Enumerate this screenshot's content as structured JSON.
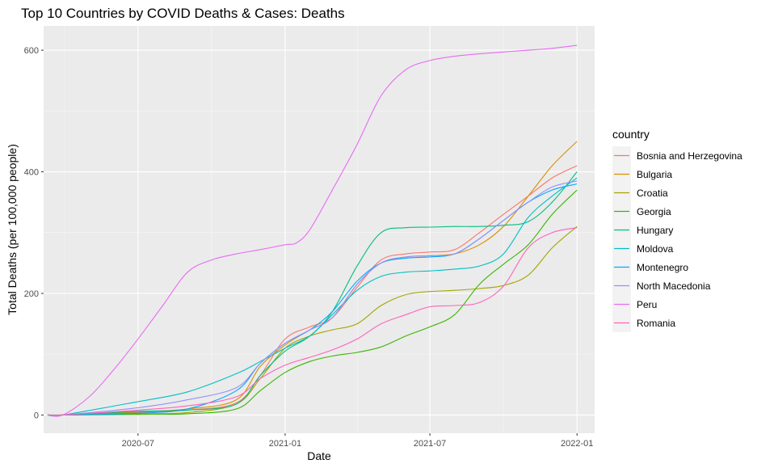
{
  "chart_data": {
    "type": "line",
    "title": "Top 10 Countries by COVID Deaths & Cases: Deaths",
    "xlabel": "Date",
    "ylabel": "Total Deaths (per 100,000 people)",
    "x_ticks": [
      "2020-07",
      "2021-01",
      "2021-07",
      "2022-01"
    ],
    "y_ticks": [
      0,
      200,
      400,
      600
    ],
    "ylim": [
      -30,
      640
    ],
    "xlim": [
      "2020-03-05",
      "2022-01-23"
    ],
    "grid": true,
    "legend_title": "country",
    "legend_position": "right",
    "series": [
      {
        "name": "Bosnia and Herzegovina",
        "color": "#F8766D",
        "x": [
          "2020-03-29",
          "2020-07-01",
          "2020-09-01",
          "2020-11-01",
          "2020-12-01",
          "2021-01-01",
          "2021-02-01",
          "2021-03-01",
          "2021-04-01",
          "2021-05-01",
          "2021-06-01",
          "2021-07-01",
          "2021-08-01",
          "2021-09-01",
          "2021-10-01",
          "2021-11-01",
          "2021-12-01",
          "2022-01-01"
        ],
        "y": [
          0,
          4,
          8,
          20,
          65,
          125,
          145,
          160,
          210,
          255,
          265,
          268,
          272,
          300,
          330,
          360,
          390,
          410
        ]
      },
      {
        "name": "Bulgaria",
        "color": "#D89000",
        "x": [
          "2020-03-29",
          "2020-07-01",
          "2020-09-01",
          "2020-11-01",
          "2020-12-01",
          "2021-01-01",
          "2021-02-01",
          "2021-03-01",
          "2021-04-01",
          "2021-05-01",
          "2021-06-01",
          "2021-07-01",
          "2021-08-01",
          "2021-09-01",
          "2021-10-01",
          "2021-11-01",
          "2021-12-01",
          "2022-01-01"
        ],
        "y": [
          0,
          5,
          10,
          25,
          80,
          115,
          140,
          160,
          215,
          250,
          260,
          262,
          265,
          280,
          310,
          360,
          410,
          450
        ]
      },
      {
        "name": "Croatia",
        "color": "#A3A500",
        "x": [
          "2020-03-29",
          "2020-07-01",
          "2020-09-01",
          "2020-11-01",
          "2020-12-01",
          "2021-01-01",
          "2021-02-01",
          "2021-03-01",
          "2021-04-01",
          "2021-05-01",
          "2021-06-01",
          "2021-07-01",
          "2021-08-01",
          "2021-09-01",
          "2021-10-01",
          "2021-11-01",
          "2021-12-01",
          "2022-01-01"
        ],
        "y": [
          0,
          2,
          4,
          18,
          60,
          110,
          130,
          140,
          150,
          180,
          198,
          203,
          205,
          208,
          213,
          230,
          275,
          310
        ]
      },
      {
        "name": "Georgia",
        "color": "#39B600",
        "x": [
          "2020-03-29",
          "2020-07-01",
          "2020-09-01",
          "2020-11-01",
          "2020-12-01",
          "2021-01-01",
          "2021-02-01",
          "2021-03-01",
          "2021-04-01",
          "2021-05-01",
          "2021-06-01",
          "2021-07-01",
          "2021-08-01",
          "2021-09-01",
          "2021-10-01",
          "2021-11-01",
          "2021-12-01",
          "2022-01-01"
        ],
        "y": [
          0,
          1,
          2,
          10,
          40,
          70,
          88,
          97,
          103,
          112,
          130,
          145,
          165,
          215,
          248,
          280,
          330,
          370
        ]
      },
      {
        "name": "Hungary",
        "color": "#00BF7D",
        "x": [
          "2020-03-29",
          "2020-07-01",
          "2020-09-01",
          "2020-11-01",
          "2020-12-01",
          "2021-01-01",
          "2021-02-01",
          "2021-03-01",
          "2021-04-01",
          "2021-05-01",
          "2021-06-01",
          "2021-07-01",
          "2021-08-01",
          "2021-09-01",
          "2021-10-01",
          "2021-11-01",
          "2021-12-01",
          "2022-01-01"
        ],
        "y": [
          0,
          6,
          8,
          18,
          65,
          105,
          130,
          170,
          245,
          300,
          308,
          309,
          310,
          310,
          312,
          318,
          350,
          400
        ]
      },
      {
        "name": "Moldova",
        "color": "#00BFC4",
        "x": [
          "2020-03-29",
          "2020-07-01",
          "2020-09-01",
          "2020-11-01",
          "2020-12-01",
          "2021-01-01",
          "2021-02-01",
          "2021-03-01",
          "2021-04-01",
          "2021-05-01",
          "2021-06-01",
          "2021-07-01",
          "2021-08-01",
          "2021-09-01",
          "2021-10-01",
          "2021-11-01",
          "2021-12-01",
          "2022-01-01"
        ],
        "y": [
          0,
          22,
          38,
          68,
          88,
          110,
          130,
          165,
          205,
          228,
          235,
          237,
          240,
          245,
          265,
          325,
          360,
          390
        ]
      },
      {
        "name": "Montenegro",
        "color": "#00A9FF",
        "x": [
          "2020-03-29",
          "2020-07-01",
          "2020-09-01",
          "2020-11-01",
          "2020-12-01",
          "2021-01-01",
          "2021-02-01",
          "2021-03-01",
          "2021-04-01",
          "2021-05-01",
          "2021-06-01",
          "2021-07-01",
          "2021-08-01",
          "2021-09-01",
          "2021-10-01",
          "2021-11-01",
          "2021-12-01",
          "2022-01-01"
        ],
        "y": [
          0,
          3,
          10,
          40,
          85,
          118,
          140,
          170,
          220,
          250,
          258,
          260,
          265,
          290,
          320,
          350,
          370,
          380
        ]
      },
      {
        "name": "North Macedonia",
        "color": "#9590FF",
        "x": [
          "2020-03-29",
          "2020-07-01",
          "2020-09-01",
          "2020-11-01",
          "2020-12-01",
          "2021-01-01",
          "2021-02-01",
          "2021-03-01",
          "2021-04-01",
          "2021-05-01",
          "2021-06-01",
          "2021-07-01",
          "2021-08-01",
          "2021-09-01",
          "2021-10-01",
          "2021-11-01",
          "2021-12-01",
          "2022-01-01"
        ],
        "y": [
          0,
          12,
          25,
          45,
          85,
          118,
          140,
          160,
          215,
          250,
          260,
          262,
          265,
          290,
          320,
          350,
          375,
          385
        ]
      },
      {
        "name": "Peru",
        "color": "#E76BF3",
        "x": [
          "2020-03-29",
          "2020-05-01",
          "2020-06-01",
          "2020-07-01",
          "2020-08-01",
          "2020-09-01",
          "2020-10-01",
          "2020-11-01",
          "2020-12-01",
          "2021-01-01",
          "2021-01-15",
          "2021-02-01",
          "2021-03-01",
          "2021-04-01",
          "2021-05-01",
          "2021-06-01",
          "2021-07-01",
          "2021-08-01",
          "2021-09-01",
          "2021-10-01",
          "2021-11-01",
          "2021-12-01",
          "2022-01-01"
        ],
        "y": [
          0,
          30,
          75,
          125,
          180,
          235,
          255,
          265,
          272,
          280,
          283,
          305,
          370,
          445,
          525,
          568,
          583,
          590,
          594,
          597,
          600,
          603,
          608
        ]
      },
      {
        "name": "Romania",
        "color": "#FF62BC",
        "x": [
          "2020-03-29",
          "2020-07-01",
          "2020-09-01",
          "2020-11-01",
          "2020-12-01",
          "2021-01-01",
          "2021-02-01",
          "2021-03-01",
          "2021-04-01",
          "2021-05-01",
          "2021-06-01",
          "2021-07-01",
          "2021-08-01",
          "2021-09-01",
          "2021-10-01",
          "2021-11-01",
          "2021-12-01",
          "2022-01-01"
        ],
        "y": [
          0,
          8,
          15,
          30,
          60,
          82,
          95,
          107,
          125,
          150,
          165,
          178,
          180,
          185,
          212,
          275,
          300,
          308
        ]
      }
    ]
  }
}
